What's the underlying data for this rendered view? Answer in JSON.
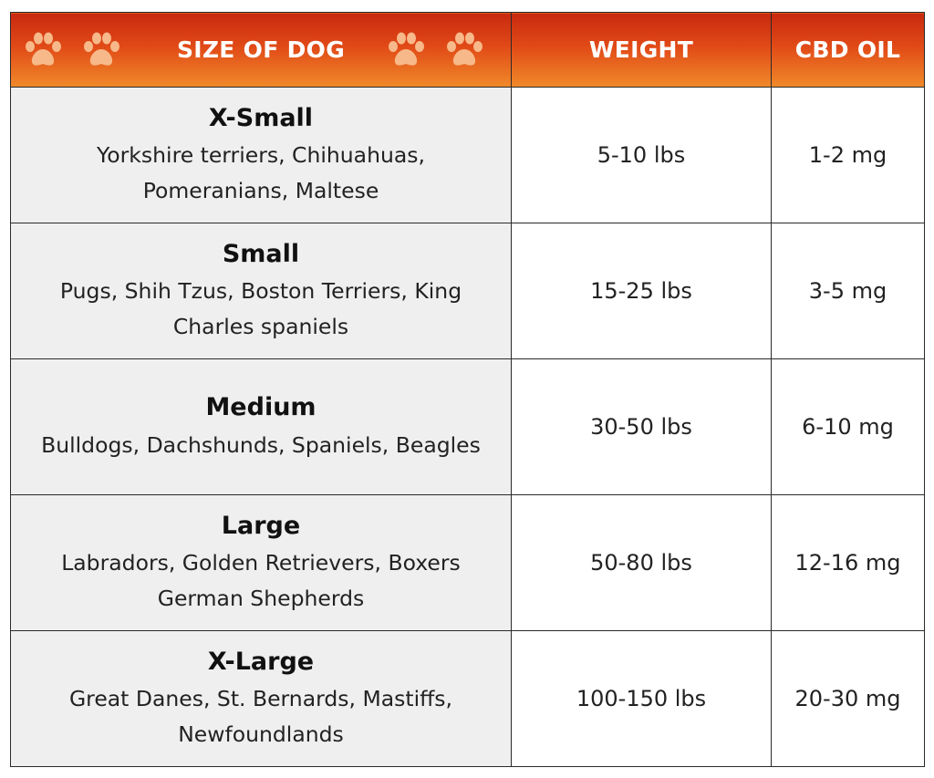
{
  "header": {
    "size_label": "SIZE OF DOG",
    "weight_label": "WEIGHT",
    "cbd_label": "CBD OIL",
    "paw_icon": "paw-icon",
    "header_gradient": [
      "#c8290f",
      "#f08a2a"
    ],
    "paw_color": "#f7b98a"
  },
  "rows": [
    {
      "size": "X-Small",
      "breeds": "Yorkshire terriers, Chihuahuas, Pomeranians, Maltese",
      "weight": "5-10 lbs",
      "cbd": "1-2 mg"
    },
    {
      "size": "Small",
      "breeds": "Pugs, Shih Tzus, Boston Terriers, King Charles spaniels",
      "weight": "15-25 lbs",
      "cbd": "3-5 mg"
    },
    {
      "size": "Medium",
      "breeds": "Bulldogs, Dachshunds, Spaniels, Beagles",
      "weight": "30-50 lbs",
      "cbd": "6-10 mg"
    },
    {
      "size": "Large",
      "breeds": "Labradors, Golden Retrievers, Boxers German Shepherds",
      "weight": "50-80 lbs",
      "cbd": "12-16 mg"
    },
    {
      "size": "X-Large",
      "breeds": "Great Danes, St. Bernards, Mastiffs, Newfoundlands",
      "weight": "100-150 lbs",
      "cbd": "20-30 mg"
    }
  ]
}
